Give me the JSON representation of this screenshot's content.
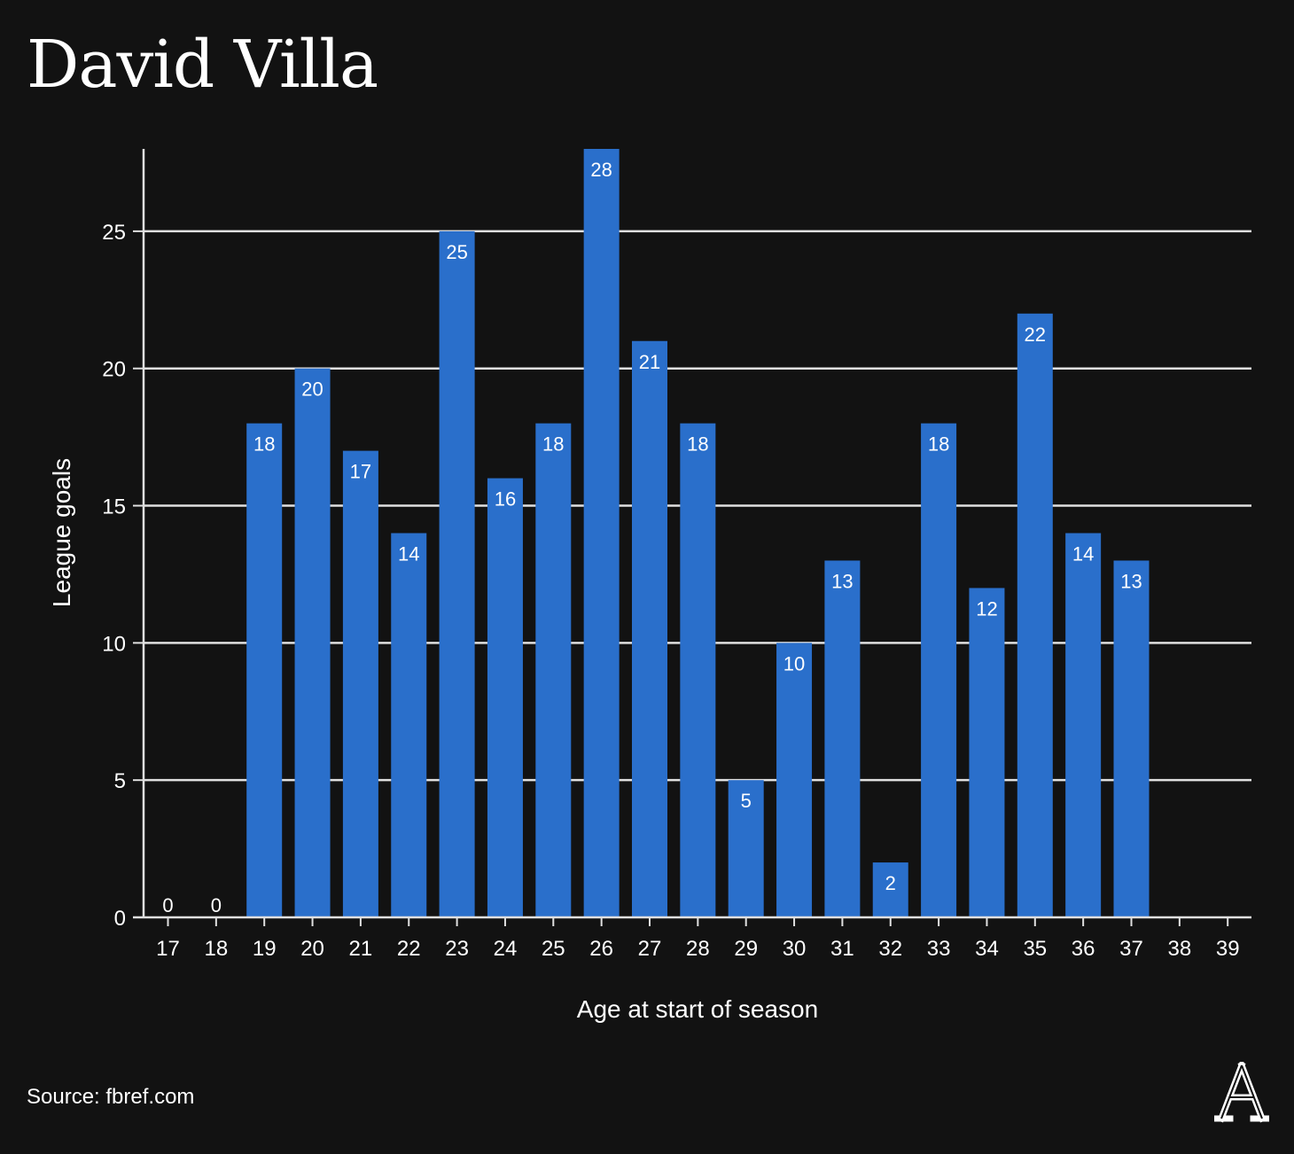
{
  "title": "David Villa",
  "source": "Source: fbref.com",
  "logo": {
    "icon": "athletic-a-logo",
    "label": "A"
  },
  "colors": {
    "background": "#121212",
    "bar": "#2a6fcb",
    "text": "#ffffff",
    "grid": "#e0e0e0"
  },
  "chart_data": {
    "type": "bar",
    "categories": [
      "17",
      "18",
      "19",
      "20",
      "21",
      "22",
      "23",
      "24",
      "25",
      "26",
      "27",
      "28",
      "29",
      "30",
      "31",
      "32",
      "33",
      "34",
      "35",
      "36",
      "37",
      "38",
      "39"
    ],
    "values": [
      0,
      0,
      18,
      20,
      17,
      14,
      25,
      16,
      18,
      28,
      21,
      18,
      5,
      10,
      13,
      2,
      18,
      12,
      22,
      14,
      13,
      null,
      null
    ],
    "data_labels": [
      "0",
      "0",
      "18",
      "20",
      "17",
      "14",
      "25",
      "16",
      "18",
      "28",
      "21",
      "18",
      "5",
      "10",
      "13",
      "2",
      "18",
      "12",
      "22",
      "14",
      "13",
      "",
      ""
    ],
    "xlabel": "Age at start of season",
    "ylabel": "League goals",
    "ylim": [
      0,
      28
    ],
    "yticks": [
      0,
      5,
      10,
      15,
      20,
      25
    ],
    "grid": true,
    "legend": false
  }
}
